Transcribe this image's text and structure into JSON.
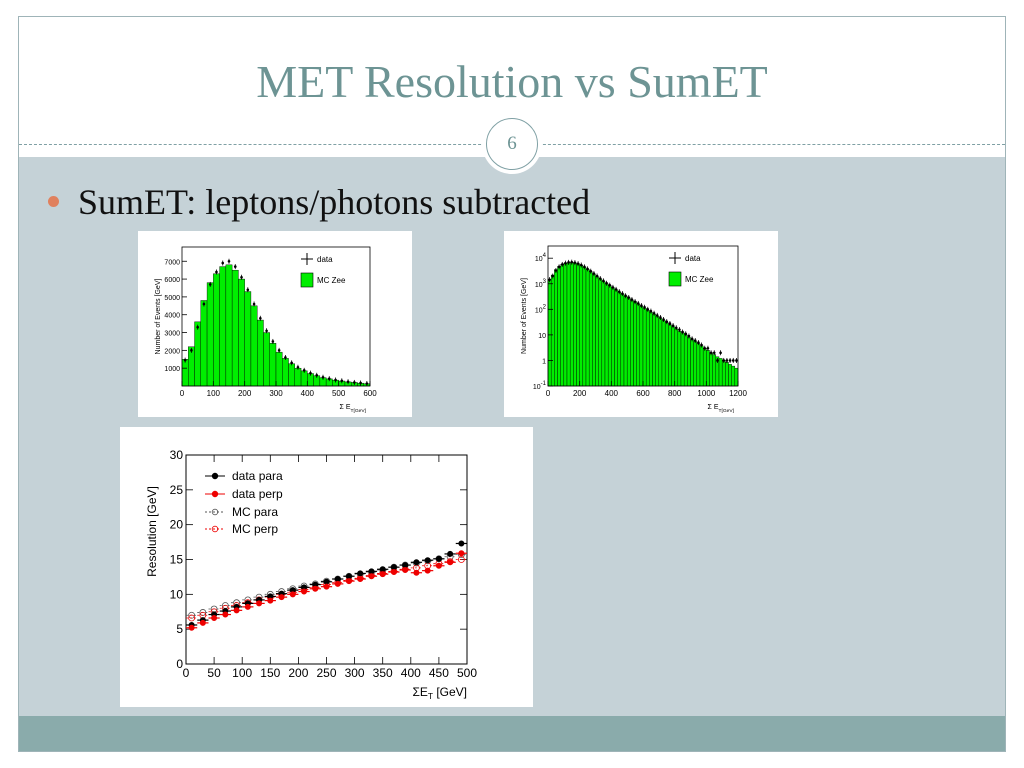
{
  "slide": {
    "title": "MET Resolution vs SumET",
    "page_number": "6",
    "bullet": "SumET: leptons/photons subtracted"
  },
  "colors": {
    "title": "#6d9494",
    "content_bg": "#c5d2d7",
    "footer_band": "#8aabab",
    "bullet_dot": "#e0815e",
    "mc_fill": "#00ee00",
    "data_perp": "#ee0000"
  },
  "chart_data": [
    {
      "type": "bar",
      "ylabel": "Number of Events [GeV]",
      "xlabel": "Σ  E_T[GeV]",
      "xlim": [
        0,
        600
      ],
      "ylim": [
        0,
        7800
      ],
      "x_ticks": [
        "0",
        "100",
        "200",
        "300",
        "400",
        "500",
        "600"
      ],
      "y_ticks": [
        "1000",
        "2000",
        "3000",
        "4000",
        "5000",
        "6000",
        "7000"
      ],
      "legend": [
        "data",
        "MC Zee"
      ],
      "legend_position": "top-right",
      "bin_width": 20,
      "bin_centers": [
        10,
        30,
        50,
        70,
        90,
        110,
        130,
        150,
        170,
        190,
        210,
        230,
        250,
        270,
        290,
        310,
        330,
        350,
        370,
        390,
        410,
        430,
        450,
        470,
        490,
        510,
        530,
        550,
        570,
        590
      ],
      "series": [
        {
          "name": "MC Zee",
          "values": [
            1500,
            2200,
            3600,
            4800,
            5800,
            6300,
            6700,
            6800,
            6500,
            6000,
            5300,
            4500,
            3700,
            3000,
            2400,
            1900,
            1550,
            1250,
            1000,
            850,
            700,
            580,
            470,
            400,
            330,
            280,
            230,
            200,
            160,
            130
          ]
        },
        {
          "name": "data",
          "values": [
            1450,
            2000,
            3300,
            4600,
            5700,
            6400,
            6900,
            7000,
            6700,
            6100,
            5400,
            4600,
            3800,
            3100,
            2500,
            2000,
            1600,
            1300,
            1050,
            880,
            720,
            600,
            490,
            410,
            340,
            290,
            240,
            200,
            170,
            140
          ]
        }
      ]
    },
    {
      "type": "bar",
      "log_y": true,
      "ylabel": "Number of Events [GeV]",
      "xlabel": "Σ  E_T[GeV]",
      "xlim": [
        0,
        1200
      ],
      "ylim": [
        0.1,
        30000
      ],
      "x_ticks": [
        "0",
        "200",
        "400",
        "600",
        "800",
        "1000",
        "1200"
      ],
      "y_ticks": [
        "10^-1",
        "1",
        "10",
        "10^2",
        "10^3",
        "10^4"
      ],
      "legend": [
        "data",
        "MC Zee"
      ],
      "legend_position": "top-right",
      "bin_width": 20,
      "bin_centers": [
        10,
        30,
        50,
        70,
        90,
        110,
        130,
        150,
        170,
        190,
        210,
        230,
        250,
        270,
        290,
        310,
        330,
        350,
        370,
        390,
        410,
        430,
        450,
        470,
        490,
        510,
        530,
        550,
        570,
        590,
        610,
        630,
        650,
        670,
        690,
        710,
        730,
        750,
        770,
        790,
        810,
        830,
        850,
        870,
        890,
        910,
        930,
        950,
        970,
        990,
        1010,
        1030,
        1050,
        1070,
        1090,
        1110,
        1130,
        1150,
        1170,
        1190
      ],
      "series": [
        {
          "name": "MC Zee",
          "values": [
            1500,
            2200,
            3600,
            4800,
            5800,
            6300,
            6700,
            6800,
            6500,
            6000,
            5300,
            4500,
            3700,
            3000,
            2400,
            1900,
            1550,
            1250,
            1000,
            850,
            700,
            580,
            470,
            400,
            330,
            280,
            230,
            200,
            160,
            130,
            110,
            92,
            77,
            64,
            53,
            44,
            37,
            30,
            25,
            21,
            17,
            14,
            12,
            10,
            8,
            6.5,
            5.5,
            4.5,
            3.7,
            3,
            2.5,
            2,
            1.7,
            1.4,
            1.2,
            1,
            0.85,
            0.7,
            0.6,
            0.5
          ]
        },
        {
          "name": "data",
          "values": [
            1450,
            2000,
            3300,
            4600,
            5700,
            6400,
            6900,
            7000,
            6700,
            6100,
            5400,
            4600,
            3800,
            3100,
            2500,
            2000,
            1600,
            1300,
            1050,
            880,
            720,
            600,
            490,
            410,
            340,
            290,
            240,
            200,
            170,
            140,
            120,
            100,
            85,
            70,
            58,
            48,
            40,
            33,
            28,
            23,
            19,
            16,
            13,
            11,
            9,
            7,
            6,
            5,
            4,
            3,
            3,
            2,
            2,
            1,
            2,
            1,
            1,
            1,
            1,
            1
          ]
        }
      ]
    },
    {
      "type": "scatter",
      "ylabel": "Resolution [GeV]",
      "xlabel": "ΣE_T [GeV]",
      "xlim": [
        0,
        500
      ],
      "ylim": [
        0,
        30
      ],
      "x_ticks": [
        "0",
        "50",
        "100",
        "150",
        "200",
        "250",
        "300",
        "350",
        "400",
        "450",
        "500"
      ],
      "y_ticks": [
        "0",
        "5",
        "10",
        "15",
        "20",
        "25",
        "30"
      ],
      "legend": [
        "data para",
        "data perp",
        "MC para",
        "MC perp"
      ],
      "legend_position": "top-left",
      "x": [
        10,
        30,
        50,
        70,
        90,
        110,
        130,
        150,
        170,
        190,
        210,
        230,
        250,
        270,
        290,
        310,
        330,
        350,
        370,
        390,
        410,
        430,
        450,
        470,
        490
      ],
      "series": [
        {
          "name": "data para",
          "values": [
            5.6,
            6.3,
            7.1,
            7.6,
            8.2,
            8.7,
            9.2,
            9.7,
            10.1,
            10.6,
            11.0,
            11.4,
            11.8,
            12.2,
            12.6,
            13.0,
            13.3,
            13.6,
            13.9,
            14.2,
            14.6,
            14.9,
            15.1,
            15.8,
            17.3
          ]
        },
        {
          "name": "data perp",
          "values": [
            5.2,
            5.9,
            6.6,
            7.1,
            7.7,
            8.2,
            8.7,
            9.1,
            9.6,
            10.0,
            10.4,
            10.8,
            11.1,
            11.5,
            11.9,
            12.2,
            12.6,
            12.9,
            13.2,
            13.5,
            13.1,
            13.4,
            14.1,
            14.6,
            15.9
          ]
        },
        {
          "name": "MC para",
          "values": [
            7.0,
            7.4,
            7.9,
            8.4,
            8.8,
            9.2,
            9.6,
            10.0,
            10.4,
            10.8,
            11.2,
            11.5,
            11.9,
            12.2,
            12.6,
            12.9,
            13.2,
            13.5,
            13.9,
            14.2,
            14.5,
            14.8,
            15.1,
            15.4,
            15.7
          ]
        },
        {
          "name": "MC perp",
          "values": [
            6.6,
            7.0,
            7.5,
            8.0,
            8.4,
            8.8,
            9.2,
            9.6,
            10.0,
            10.3,
            10.7,
            11.0,
            11.4,
            11.7,
            12.0,
            12.3,
            12.7,
            13.0,
            13.3,
            13.6,
            13.8,
            14.1,
            14.4,
            14.7,
            15.0
          ]
        }
      ]
    }
  ]
}
